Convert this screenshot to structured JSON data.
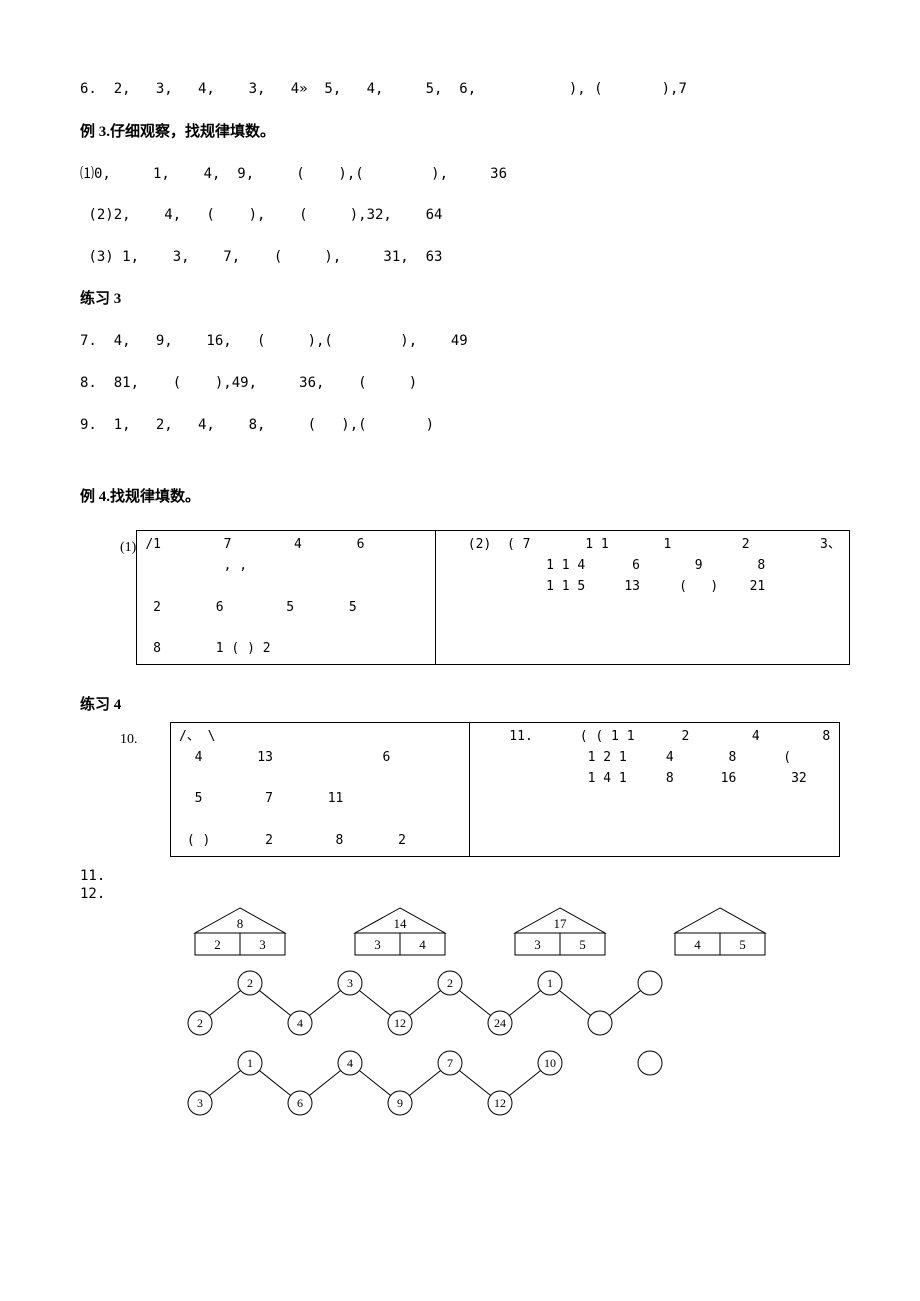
{
  "q6": "6.  2,   3,   4,    3,   4»  5,   4,     5,  6,           ), (       ),7",
  "ex3_title": "例 3.仔细观察，找规律填数。",
  "ex3_1": "⑴0,     1,    4,  9,     (    ),(        ),     36",
  "ex3_2": " (2)2,    4,   (    ),    (     ),32,    64",
  "ex3_3": " (3) 1,    3,    7,    (     ),     31,  63",
  "p3_title": "练习 3",
  "p3_7": "7.  4,   9,    16,   (     ),(        ),    49",
  "p3_8": "8.  81,    (    ),49,     36,    (     )",
  "p3_9": "9.  1,   2,   4,    8,     (   ),(       )",
  "ex4_title": "例 4.找规律填数。",
  "ex4_label": "(1)",
  "ex4_left_r1": "/1        7        4       6",
  "ex4_left_r2": "          , ,",
  "ex4_left_r3": " ",
  "ex4_left_r4": " 2       6        5       5",
  "ex4_left_r5": " ",
  "ex4_left_r6": " 8       1 ( ) 2",
  "ex4_right_r1": "   (2)  ( 7       1 1       1         2         3、",
  "ex4_right_r2": "             1 1 4      6       9       8",
  "ex4_right_r3": "             1 1 5     13     (   )    21",
  "p4_title": "练习 4",
  "p4_label": "10.",
  "p4_left_r1": "/、 \\",
  "p4_left_r2": "  4       13              6",
  "p4_left_r3": " ",
  "p4_left_r4": "  5        7       11",
  "p4_left_r5": " ",
  "p4_left_r6": " ( )       2        8       2",
  "p4_right_r1": "    11.      ( ( 1 1      2        4        8",
  "p4_right_r2": "              1 2 1     4       8      (",
  "p4_right_r3": "              1 4 1     8      16       32",
  "q11_12": "11.\n12.",
  "diagram": {
    "tri_tops": [
      8,
      14,
      17,
      null
    ],
    "tri_pairs": [
      [
        2,
        3
      ],
      [
        3,
        4
      ],
      [
        3,
        5
      ],
      [
        4,
        5
      ]
    ],
    "row1_circles": [
      2,
      3,
      2,
      1,
      null
    ],
    "row2_circles": [
      2,
      4,
      12,
      24,
      null
    ],
    "row3_circles": [
      1,
      4,
      7,
      10,
      null
    ],
    "row4_circles": [
      3,
      6,
      9,
      12
    ],
    "colors": {
      "stroke": "#000000",
      "fill": "#ffffff",
      "text": "#000000"
    },
    "stroke_width": 1
  }
}
